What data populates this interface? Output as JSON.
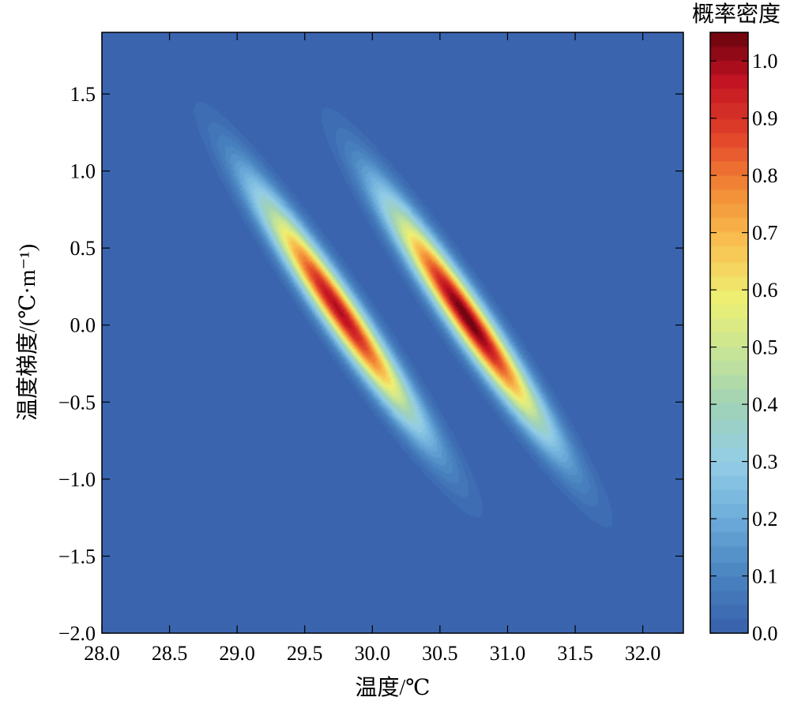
{
  "chart_data": {
    "type": "heatmap",
    "xlabel": "温度/℃",
    "ylabel": "温度梯度/(℃·m⁻¹)",
    "colorbar_label": "概率密度",
    "xlim": [
      28.0,
      32.3
    ],
    "ylim": [
      -2.0,
      1.9
    ],
    "zlim": [
      0.0,
      1.05
    ],
    "x_ticks": [
      28.0,
      28.5,
      29.0,
      29.5,
      30.0,
      30.5,
      31.0,
      31.5,
      32.0
    ],
    "x_tick_labels": [
      "28.0",
      "28.5",
      "29.0",
      "29.5",
      "30.0",
      "30.5",
      "31.0",
      "31.5",
      "32.0"
    ],
    "y_ticks": [
      -2.0,
      -1.5,
      -1.0,
      -0.5,
      0.0,
      0.5,
      1.0,
      1.5
    ],
    "y_tick_labels": [
      "−2.0",
      "−1.5",
      "−1.0",
      "−0.5",
      "0.0",
      "0.5",
      "1.0",
      "1.5"
    ],
    "colorbar_ticks": [
      0.0,
      0.1,
      0.2,
      0.3,
      0.4,
      0.5,
      0.6,
      0.7,
      0.8,
      0.9,
      1.0
    ],
    "colorbar_tick_labels": [
      "0.0",
      "0.1",
      "0.2",
      "0.3",
      "0.4",
      "0.5",
      "0.6",
      "0.7",
      "0.8",
      "0.9",
      "1.0"
    ],
    "colormap": [
      "#3a64ae",
      "#4b86c2",
      "#6eaedb",
      "#93cde6",
      "#9fd2b9",
      "#c7e496",
      "#eef073",
      "#f9c050",
      "#f28a35",
      "#e2422b",
      "#c01222",
      "#5a0008"
    ],
    "modes": [
      {
        "center_x": 29.75,
        "center_y": 0.1,
        "peak": 0.98,
        "major_axis_direction": [
          -0.62,
          0.79
        ]
      },
      {
        "center_x": 30.7,
        "center_y": 0.05,
        "peak": 1.05,
        "major_axis_direction": [
          -0.62,
          0.79
        ]
      }
    ]
  }
}
